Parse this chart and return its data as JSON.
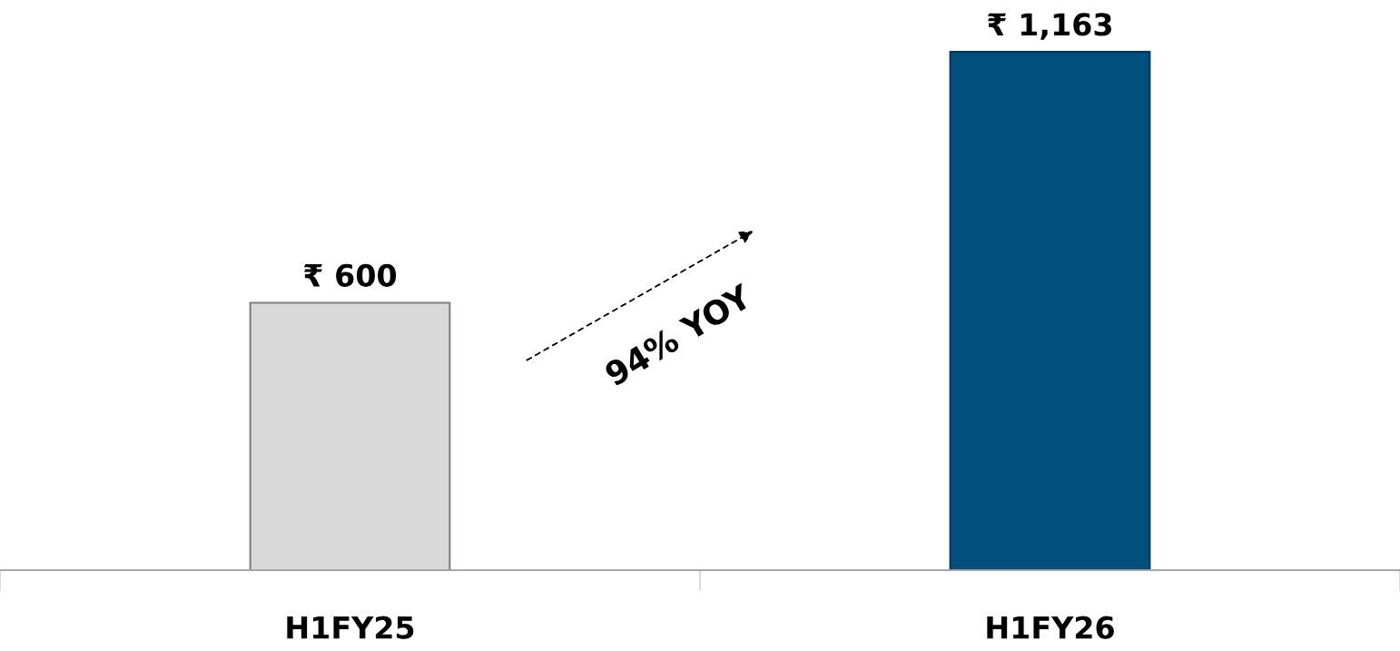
{
  "chart_data": {
    "type": "bar",
    "categories": [
      "H1FY25",
      "H1FY26"
    ],
    "values": [
      600,
      1163
    ],
    "colors": [
      "#d9d9d9",
      "#004f7c"
    ],
    "value_labels": [
      "₹ 600",
      "₹ 1,163"
    ],
    "annotations": [
      "94% YOY"
    ],
    "grid": false,
    "legend": false
  }
}
